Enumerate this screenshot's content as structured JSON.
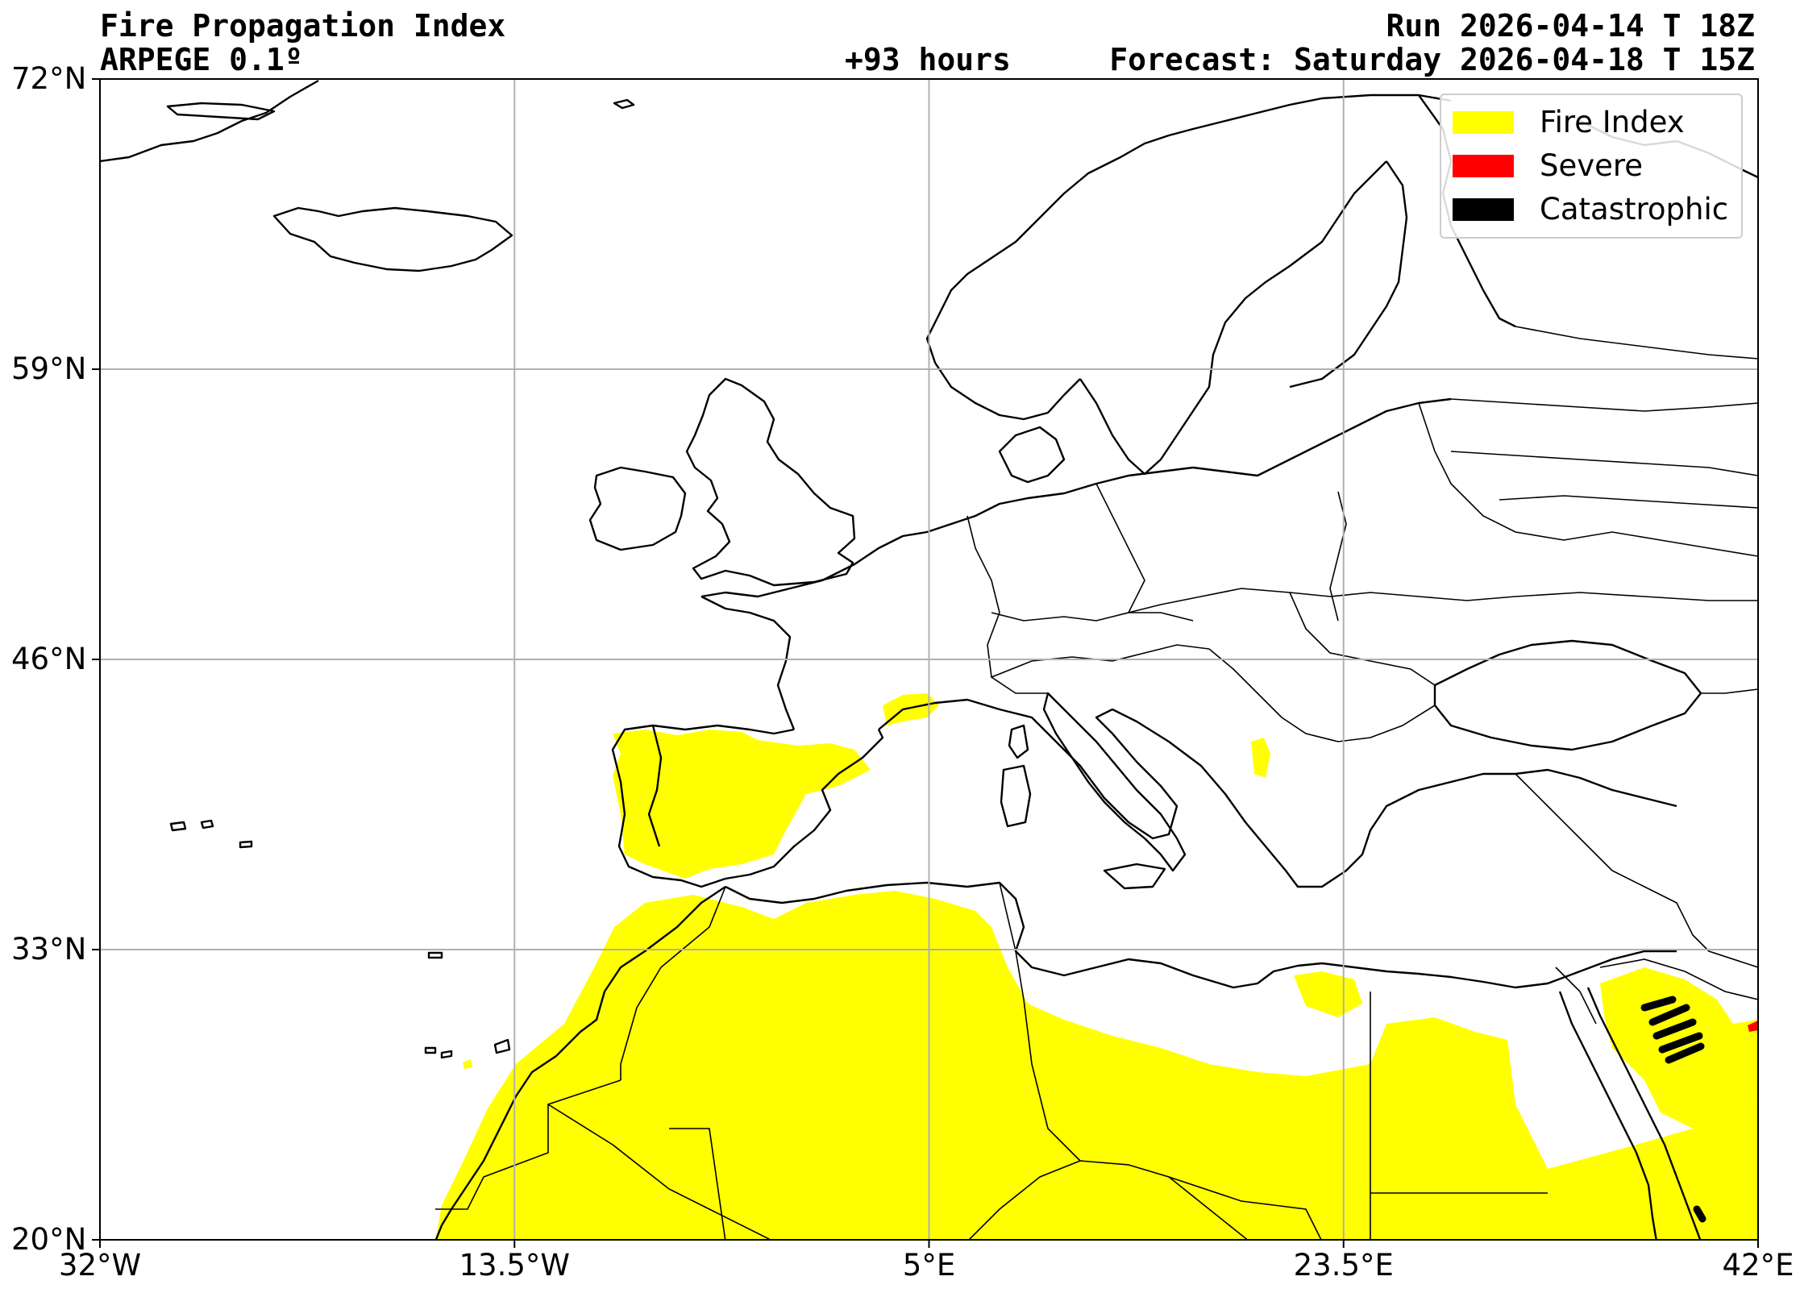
{
  "header": {
    "title": "Fire Propagation Index",
    "model": "ARPEGE 0.1º",
    "lead_time": "+93 hours",
    "run": "Run 2026-04-14 T 18Z",
    "forecast": "Forecast: Saturday 2026-04-18 T 15Z"
  },
  "axes": {
    "y_ticks": [
      "72°N",
      "59°N",
      "46°N",
      "33°N",
      "20°N"
    ],
    "x_ticks": [
      "32°W",
      "13.5°W",
      "5°E",
      "23.5°E",
      "42°E"
    ],
    "lat_range": [
      20,
      72
    ],
    "lon_range": [
      -32,
      42
    ],
    "grid": true
  },
  "legend": {
    "placement": "top-right",
    "items": [
      {
        "label": "Fire Index",
        "color": "#ffff00"
      },
      {
        "label": "Severe",
        "color": "#ff0000"
      },
      {
        "label": "Catastrophic",
        "color": "#000000"
      }
    ]
  },
  "colors": {
    "fire_index": "#ffff00",
    "severe": "#ff0000",
    "catastrophic": "#000000",
    "grid": "#b0b0b0",
    "coastline": "#000000"
  }
}
